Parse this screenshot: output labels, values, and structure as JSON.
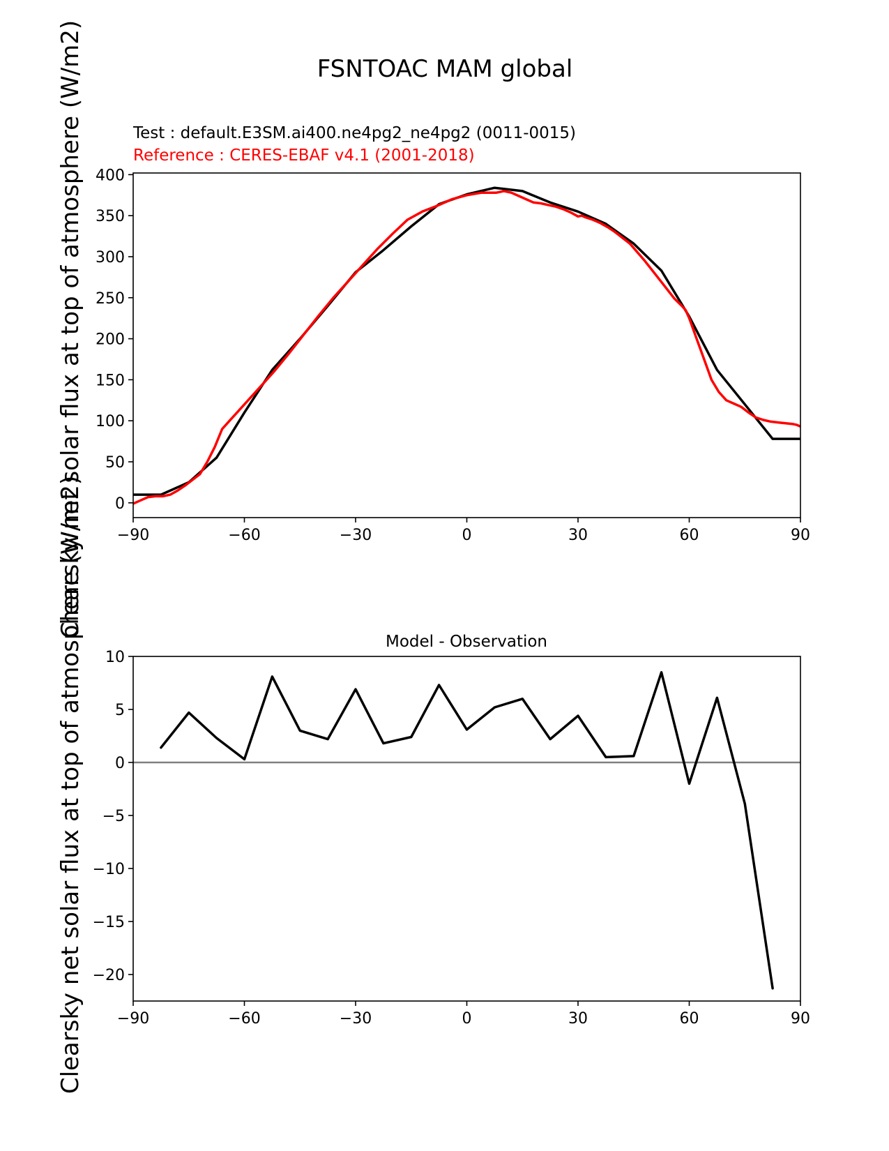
{
  "figure_title": "FSNTOAC MAM global",
  "ylabel_top": "Clearsky net solar flux at top of atmosphere (W/m2)",
  "ylabel_bottom": "Clearsky net solar flux at top of atmosphere (W/m2)",
  "colors": {
    "test": "#000000",
    "reference": "#ff0000",
    "zero_line": "#808080",
    "axes": "#000000"
  },
  "chart_data": [
    {
      "type": "line",
      "test_label": "Test : default.E3SM.ai400.ne4pg2_ne4pg2 (0011-0015)",
      "reference_label": "Reference : CERES-EBAF v4.1 (2001-2018)",
      "xlim": [
        -90,
        90
      ],
      "ylim": [
        -18,
        402
      ],
      "xticks": [
        -90,
        -60,
        -30,
        0,
        30,
        60,
        90
      ],
      "yticks": [
        0,
        50,
        100,
        150,
        200,
        250,
        300,
        350,
        400
      ],
      "series": [
        {
          "name": "Test : default.E3SM.ai400.ne4pg2_ne4pg2 (0011-0015)",
          "color": "#000000",
          "x": [
            -90,
            -82.5,
            -75,
            -67.5,
            -60,
            -52.5,
            -45,
            -37.5,
            -30,
            -22.5,
            -15,
            -7.5,
            0,
            7.5,
            15,
            22.5,
            30,
            37.5,
            45,
            52.5,
            60,
            67.5,
            75,
            82.5,
            90
          ],
          "y": [
            10,
            10,
            25,
            55,
            110,
            162,
            200,
            240,
            281,
            308,
            337,
            364,
            376,
            384,
            380,
            366,
            355,
            340,
            316,
            283,
            227,
            162,
            120,
            78,
            78
          ]
        },
        {
          "name": "Reference : CERES-EBAF v4.1 (2001-2018)",
          "color": "#ff0000",
          "x": [
            -90,
            -88,
            -86,
            -84,
            -82,
            -80,
            -78,
            -76,
            -74,
            -72,
            -70,
            -68,
            -66,
            -64,
            -62,
            -60,
            -56,
            -52,
            -48,
            -44,
            -40,
            -36,
            -32,
            -28,
            -24,
            -20,
            -16,
            -12,
            -8,
            -4,
            0,
            4,
            8,
            10,
            12,
            14,
            16,
            18,
            20,
            22,
            24,
            26,
            28,
            30,
            31,
            32,
            34,
            36,
            38,
            40,
            44,
            48,
            52,
            56,
            58,
            59,
            60,
            62,
            64,
            66,
            68,
            70,
            72,
            74,
            76,
            78,
            80,
            82,
            84,
            86,
            88,
            89,
            90
          ],
          "y": [
            -1,
            3,
            7,
            8,
            8,
            10,
            15,
            21,
            28,
            35,
            50,
            68,
            90,
            100,
            110,
            120,
            140,
            160,
            182,
            205,
            228,
            250,
            270,
            290,
            310,
            328,
            345,
            355,
            362,
            370,
            375,
            378,
            378,
            380,
            378,
            374,
            370,
            366,
            365,
            363,
            361,
            358,
            354,
            349,
            350,
            348,
            345,
            341,
            336,
            330,
            316,
            295,
            272,
            249,
            240,
            235,
            225,
            200,
            175,
            150,
            135,
            125,
            121,
            117,
            110,
            104,
            101,
            99,
            98,
            97,
            96,
            95,
            93
          ]
        }
      ]
    },
    {
      "type": "line",
      "title": "Model - Observation",
      "xlim": [
        -90,
        90
      ],
      "ylim": [
        -22.5,
        10
      ],
      "xticks": [
        -90,
        -60,
        -30,
        0,
        30,
        60,
        90
      ],
      "yticks": [
        10,
        5,
        0,
        -5,
        -10,
        -15,
        -20
      ],
      "zero_line": 0,
      "series": [
        {
          "color": "#000000",
          "x": [
            -82.5,
            -75,
            -67.5,
            -60,
            -52.5,
            -45,
            -37.5,
            -30,
            -22.5,
            -15,
            -7.5,
            0,
            7.5,
            15,
            22.5,
            30,
            37.5,
            45,
            52.5,
            60,
            67.5,
            75,
            82.5
          ],
          "y": [
            1.4,
            4.7,
            2.3,
            0.3,
            8.1,
            3.0,
            2.2,
            6.9,
            1.8,
            2.4,
            7.3,
            3.1,
            5.2,
            6.0,
            2.2,
            4.4,
            0.5,
            0.6,
            8.5,
            -2.0,
            6.1,
            -3.9,
            -21.3
          ]
        }
      ]
    }
  ]
}
